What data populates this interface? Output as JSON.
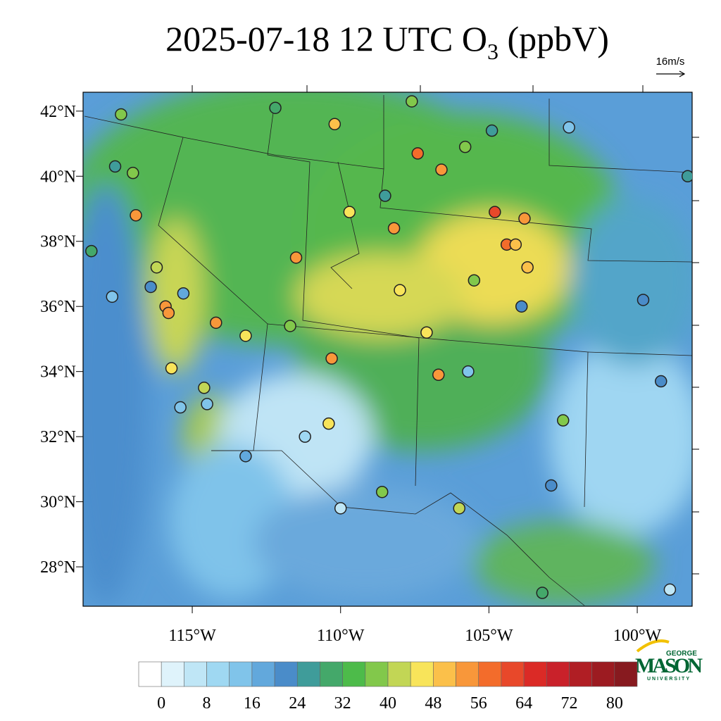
{
  "title": {
    "text": "2025-07-18 12 UTC O",
    "subscript": "3",
    "suffix": " (ppbV)"
  },
  "wind_reference": "16m/s",
  "map": {
    "xlim": [
      -118.68,
      -98.15
    ],
    "ylim": [
      26.79,
      42.58
    ],
    "xticks": [
      {
        "value": -115,
        "label": "115°W"
      },
      {
        "value": -110,
        "label": "110°W"
      },
      {
        "value": -105,
        "label": "105°W"
      },
      {
        "value": -100,
        "label": "100°W"
      }
    ],
    "yticks": [
      {
        "value": 42,
        "label": "42°N"
      },
      {
        "value": 40,
        "label": "40°N"
      },
      {
        "value": 38,
        "label": "38°N"
      },
      {
        "value": 36,
        "label": "36°N"
      },
      {
        "value": 34,
        "label": "34°N"
      },
      {
        "value": 32,
        "label": "32°N"
      },
      {
        "value": 30,
        "label": "30°N"
      },
      {
        "value": 28,
        "label": "28°N"
      }
    ],
    "stations": {
      "lon": [
        -117.4,
        -112.2,
        -107.6,
        -110.2,
        -107.4,
        -106.6,
        -105.8,
        -104.8,
        -103.8,
        -104.4,
        -104.1,
        -103.7,
        -108.2,
        -109.7,
        -116.9,
        -115.9,
        -115.8,
        -114.2,
        -111.5,
        -113.2,
        -110.3,
        -106.7,
        -108.0,
        -107.1,
        -115.7,
        -116.2,
        -102.5,
        -108.6,
        -106.0,
        -110.4,
        -111.7,
        -105.5,
        -117.0,
        -114.6,
        -118.4,
        -117.6,
        -116.4,
        -117.7,
        -110.0,
        -108.5,
        -104.9,
        -102.3,
        -98.3,
        -99.8,
        -99.2,
        -103.2,
        -98.9,
        -113.2,
        -105.7,
        -103.9,
        -115.3,
        -114.5,
        -115.4,
        -111.2,
        -102.9
      ],
      "lat": [
        41.9,
        42.1,
        42.3,
        41.6,
        40.7,
        40.2,
        40.9,
        38.9,
        38.7,
        37.9,
        37.9,
        37.2,
        38.4,
        38.9,
        38.8,
        36.0,
        35.8,
        35.5,
        37.5,
        35.1,
        34.4,
        33.9,
        36.5,
        35.2,
        34.1,
        37.2,
        32.5,
        30.3,
        29.8,
        32.4,
        35.4,
        36.8,
        40.1,
        33.5,
        37.7,
        40.3,
        36.6,
        36.3,
        29.8,
        39.4,
        41.4,
        41.5,
        40.0,
        36.2,
        33.7,
        27.2,
        27.3,
        31.4,
        34.0,
        36.0,
        36.4,
        33.0,
        32.9,
        32.0,
        30.5
      ],
      "values": [
        36,
        30,
        36,
        48,
        56,
        52,
        38,
        60,
        52,
        56,
        48,
        48,
        54,
        46,
        52,
        54,
        52,
        52,
        52,
        46,
        52,
        52,
        46,
        46,
        46,
        42,
        38,
        38,
        40,
        44,
        36,
        36,
        38,
        42,
        28,
        24,
        22,
        12,
        4,
        24,
        24,
        14,
        24,
        22,
        20,
        30,
        4,
        16,
        14,
        22,
        18,
        14,
        12,
        10,
        20
      ]
    }
  },
  "colorbar": {
    "levels": [
      0,
      4,
      8,
      12,
      16,
      20,
      24,
      28,
      32,
      36,
      40,
      44,
      48,
      52,
      56,
      60,
      64,
      68,
      72,
      76,
      80
    ],
    "ticks": [
      0,
      8,
      16,
      24,
      32,
      40,
      48,
      56,
      64,
      72,
      80
    ],
    "colors": [
      "#ffffff",
      "#dff3fb",
      "#bfe6f6",
      "#9fd8f2",
      "#80c4ea",
      "#62a8dc",
      "#4a8cc9",
      "#3f9c9a",
      "#44a86a",
      "#4dbb4a",
      "#82c84b",
      "#c2d655",
      "#f8e45a",
      "#fbc04a",
      "#f8973a",
      "#f36c2b",
      "#e8482a",
      "#db2a26",
      "#c9212a",
      "#b01e24",
      "#9c1b21",
      "#871a1f"
    ]
  },
  "logo": {
    "top": "GEORGE",
    "main": "MASON",
    "bottom": "UNIVERSITY"
  }
}
